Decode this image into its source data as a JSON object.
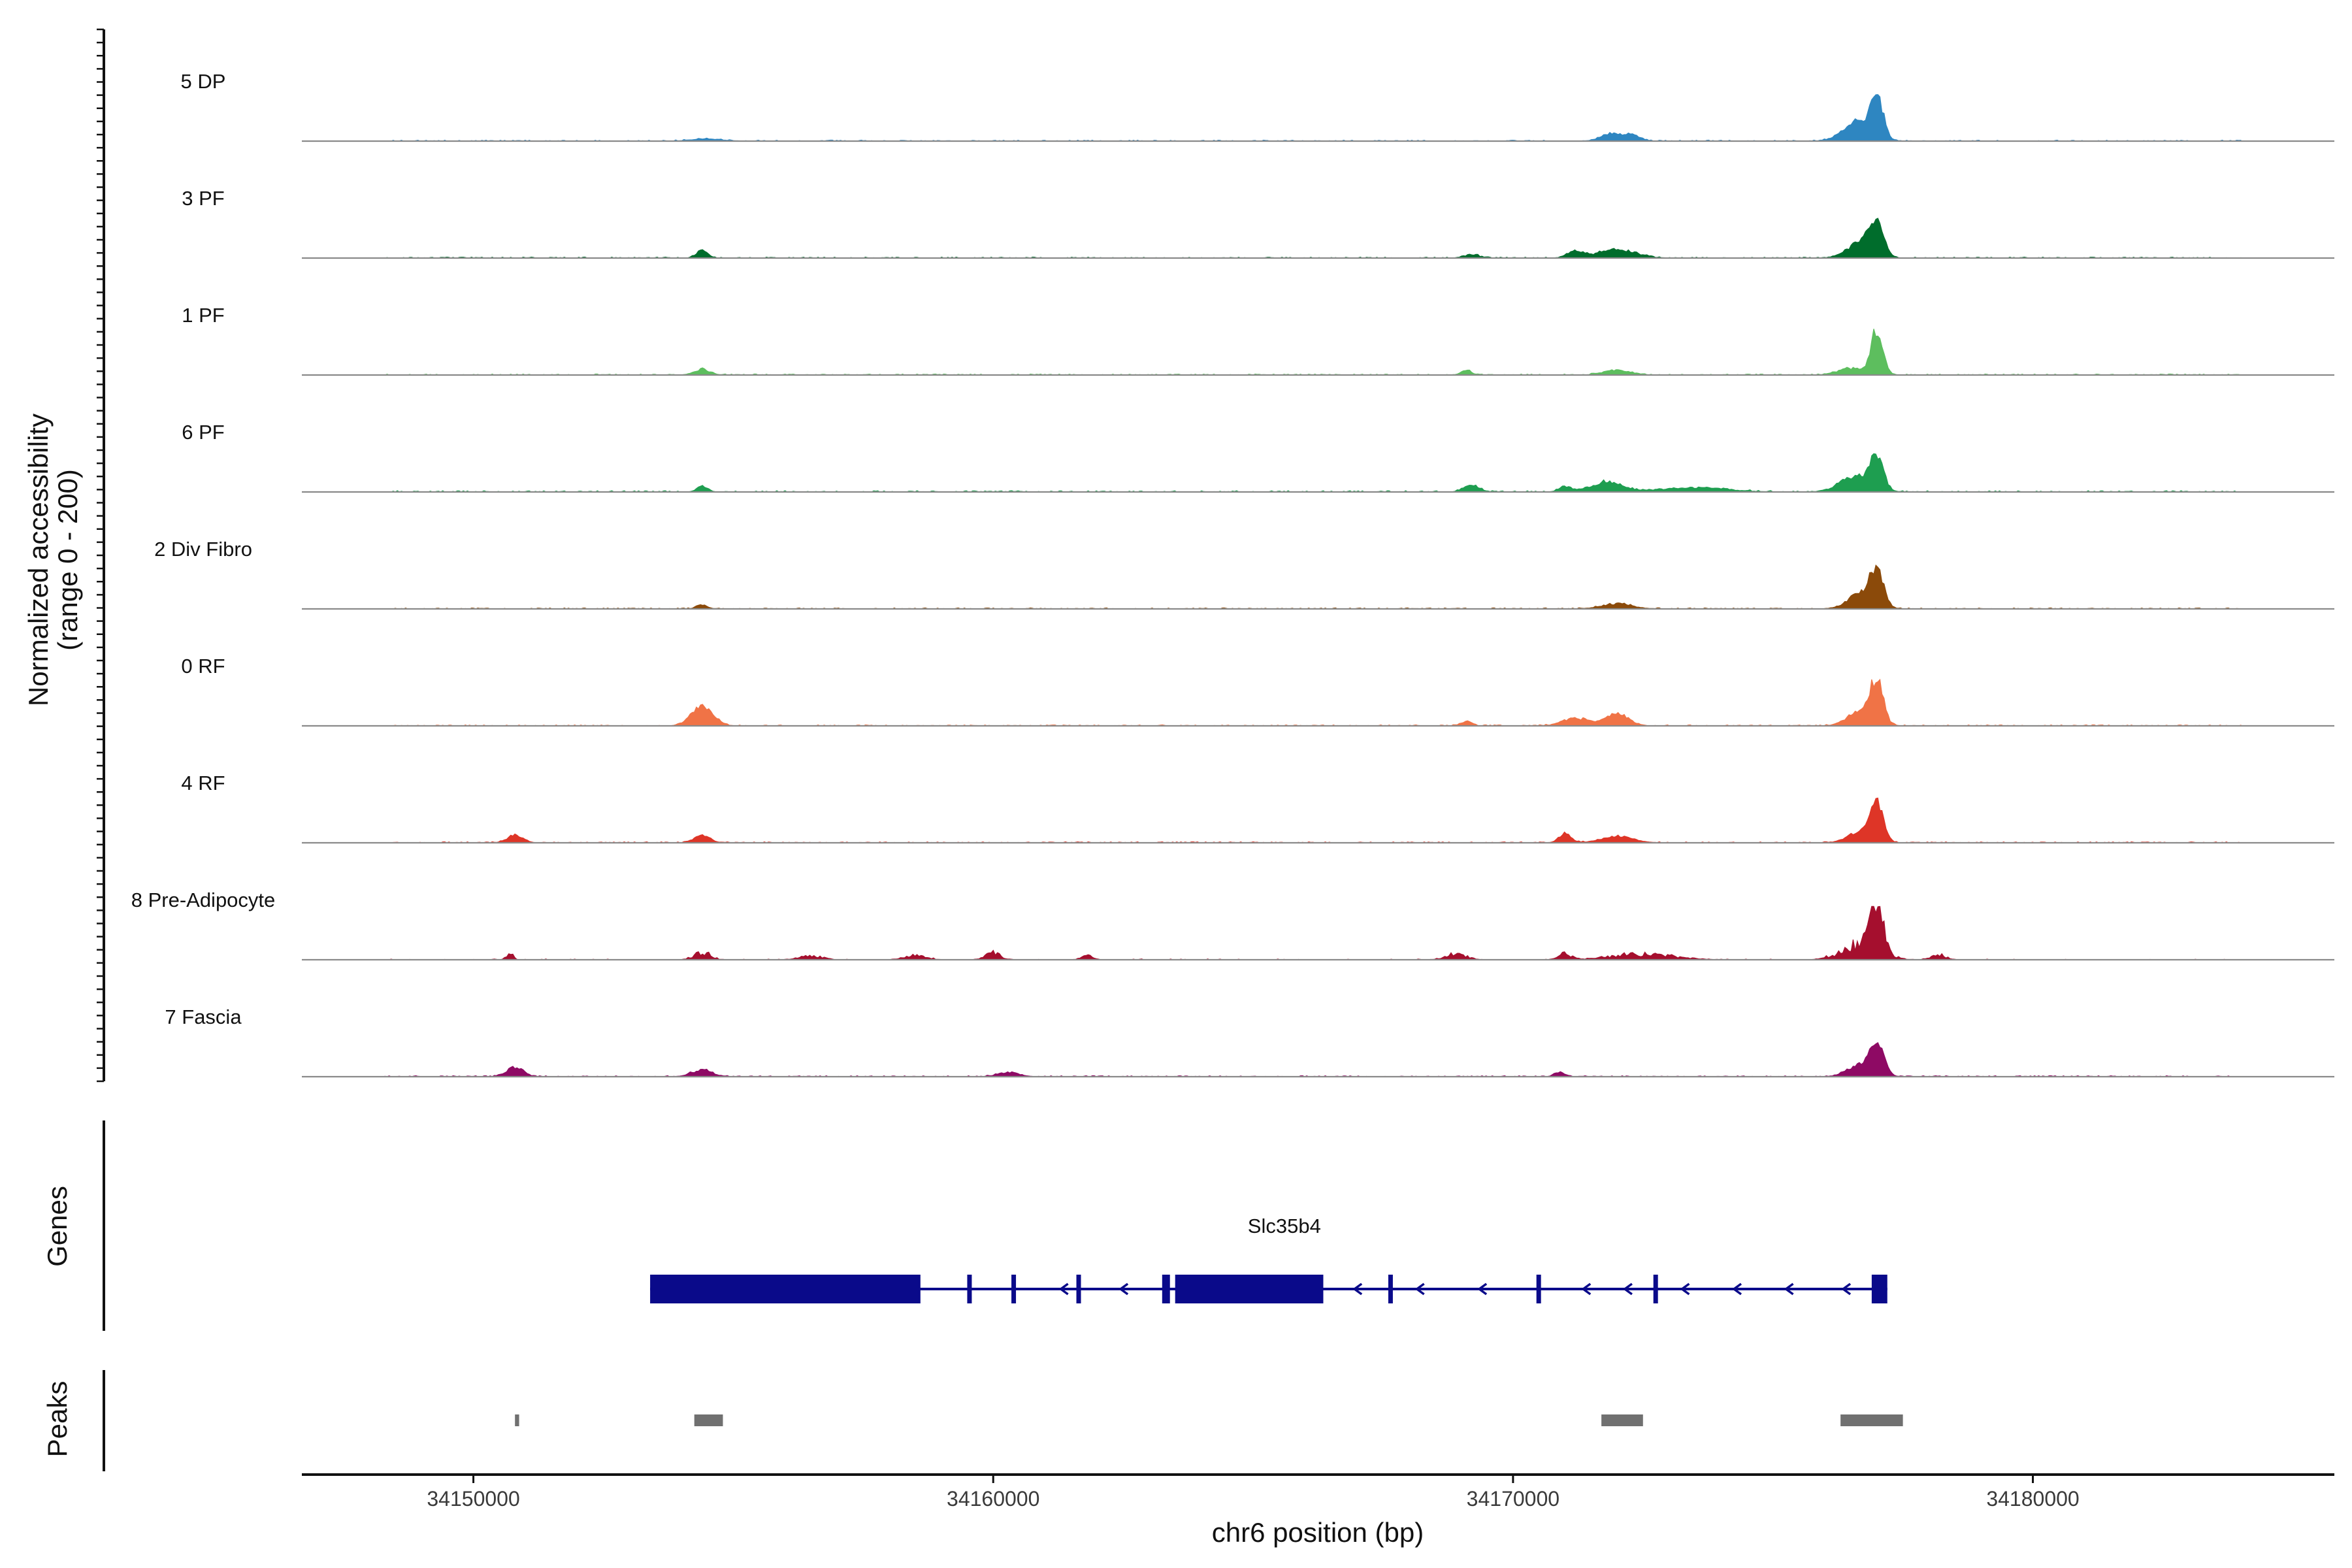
{
  "chart_data": {
    "type": "area",
    "title": "",
    "y_label": "Normalized accessibility",
    "y_range_label": "(range 0 - 200)",
    "ylim": [
      0,
      200
    ],
    "x_label": "chr6 position (bp)",
    "xlim": [
      34146700,
      34185800
    ],
    "x_ticks": [
      {
        "value": 34150000,
        "label": "34150000"
      },
      {
        "value": 34160000,
        "label": "34160000"
      },
      {
        "value": 34170000,
        "label": "34170000"
      },
      {
        "value": 34180000,
        "label": "34180000"
      }
    ],
    "region_start": 34148300,
    "region_end": 34184000,
    "tracks": [
      {
        "name": "5 DP",
        "color": "#2E86C1",
        "baseline": 8,
        "peaks": [
          [
            34154500,
            4,
            300
          ],
          [
            34171900,
            14,
            200
          ],
          [
            34172300,
            10,
            150
          ],
          [
            34176700,
            12,
            250
          ],
          [
            34177000,
            72,
            120
          ],
          [
            34176600,
            25,
            280
          ]
        ]
      },
      {
        "name": "3 PF",
        "color": "#006D2C",
        "baseline": 8,
        "peaks": [
          [
            34154400,
            16,
            100
          ],
          [
            34169200,
            6,
            150
          ],
          [
            34171200,
            12,
            150
          ],
          [
            34172000,
            16,
            350
          ],
          [
            34176700,
            30,
            250
          ],
          [
            34177000,
            62,
            130
          ]
        ]
      },
      {
        "name": "1 PF",
        "color": "#5DBE5E",
        "baseline": 8,
        "peaks": [
          [
            34154400,
            10,
            150
          ],
          [
            34169100,
            8,
            100
          ],
          [
            34172000,
            9,
            250
          ],
          [
            34176500,
            12,
            250
          ],
          [
            34177000,
            82,
            110
          ]
        ]
      },
      {
        "name": "6 PF",
        "color": "#1E9E50",
        "baseline": 10,
        "peaks": [
          [
            34154400,
            10,
            100
          ],
          [
            34169200,
            12,
            150
          ],
          [
            34171000,
            10,
            120
          ],
          [
            34171800,
            18,
            300
          ],
          [
            34173500,
            8,
            600
          ],
          [
            34176600,
            30,
            300
          ],
          [
            34177000,
            60,
            120
          ]
        ]
      },
      {
        "name": "2 Div Fibro",
        "color": "#8B4A0A",
        "baseline": 8,
        "peaks": [
          [
            34154400,
            8,
            100
          ],
          [
            34172000,
            9,
            300
          ],
          [
            34176700,
            28,
            250
          ],
          [
            34177000,
            62,
            130
          ]
        ]
      },
      {
        "name": "0 RF",
        "color": "#F07346",
        "baseline": 8,
        "peaks": [
          [
            34154400,
            38,
            200
          ],
          [
            34169100,
            8,
            100
          ],
          [
            34171200,
            14,
            250
          ],
          [
            34172000,
            22,
            220
          ],
          [
            34176700,
            28,
            250
          ],
          [
            34177000,
            74,
            120
          ]
        ]
      },
      {
        "name": "4 RF",
        "color": "#DE3527",
        "baseline": 8,
        "peaks": [
          [
            34150800,
            14,
            150
          ],
          [
            34154400,
            14,
            150
          ],
          [
            34171000,
            16,
            120
          ],
          [
            34172000,
            12,
            300
          ],
          [
            34176700,
            20,
            250
          ],
          [
            34177000,
            66,
            120
          ]
        ]
      },
      {
        "name": "8 Pre-Adipocyte",
        "color": "#A50F2E",
        "baseline": 6,
        "spiky": true,
        "peaks": [
          [
            34150700,
            14,
            60
          ],
          [
            34154400,
            14,
            150
          ],
          [
            34156500,
            8,
            200
          ],
          [
            34158500,
            8,
            200
          ],
          [
            34160000,
            12,
            150
          ],
          [
            34161800,
            10,
            100
          ],
          [
            34168900,
            10,
            200
          ],
          [
            34171000,
            10,
            120
          ],
          [
            34172500,
            10,
            600
          ],
          [
            34176700,
            28,
            350
          ],
          [
            34177000,
            96,
            120
          ],
          [
            34178200,
            8,
            150
          ]
        ]
      },
      {
        "name": "7 Fascia",
        "color": "#8E0A64",
        "baseline": 8,
        "peaks": [
          [
            34150800,
            18,
            150
          ],
          [
            34154400,
            12,
            200
          ],
          [
            34160300,
            8,
            200
          ],
          [
            34170900,
            8,
            100
          ],
          [
            34176700,
            22,
            250
          ],
          [
            34177000,
            56,
            130
          ]
        ]
      }
    ],
    "genes_label": "Genes",
    "gene": {
      "name": "Slc35b4",
      "color": "#0A0A8A",
      "strand": "-",
      "start": 34153400,
      "end": 34177200,
      "exons": [
        [
          34153400,
          34158600
        ],
        [
          34159500,
          34159580
        ],
        [
          34160350,
          34160430
        ],
        [
          34161600,
          34161680
        ],
        [
          34163250,
          34163400
        ],
        [
          34163500,
          34166350
        ],
        [
          34167600,
          34167680
        ],
        [
          34170450,
          34170530
        ],
        [
          34172700,
          34172780
        ],
        [
          34176900,
          34177200
        ]
      ],
      "arrows": [
        34161350,
        34162500,
        34167000,
        34168200,
        34169400,
        34171400,
        34172200,
        34173300,
        34174300,
        34175300,
        34176400
      ]
    },
    "peaks_label": "Peaks",
    "peak_regions": [
      [
        34150800,
        34150880
      ],
      [
        34154250,
        34154800
      ],
      [
        34171700,
        34172500
      ],
      [
        34176300,
        34177500
      ]
    ],
    "peak_color": "#707070"
  }
}
